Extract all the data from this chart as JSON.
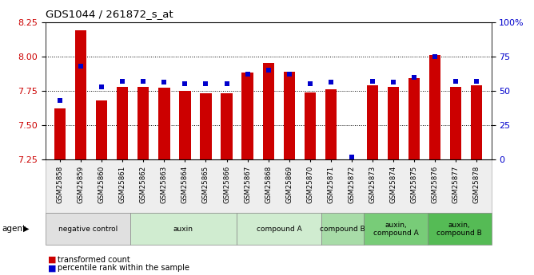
{
  "title": "GDS1044 / 261872_s_at",
  "samples": [
    "GSM25858",
    "GSM25859",
    "GSM25860",
    "GSM25861",
    "GSM25862",
    "GSM25863",
    "GSM25864",
    "GSM25865",
    "GSM25866",
    "GSM25867",
    "GSM25868",
    "GSM25869",
    "GSM25870",
    "GSM25871",
    "GSM25872",
    "GSM25873",
    "GSM25874",
    "GSM25875",
    "GSM25876",
    "GSM25877",
    "GSM25878"
  ],
  "bar_values": [
    7.62,
    8.19,
    7.68,
    7.78,
    7.78,
    7.77,
    7.75,
    7.73,
    7.73,
    7.88,
    7.95,
    7.89,
    7.74,
    7.76,
    7.25,
    7.79,
    7.78,
    7.84,
    8.01,
    7.78,
    7.79
  ],
  "percentile_values": [
    43,
    68,
    53,
    57,
    57,
    56,
    55,
    55,
    55,
    62,
    65,
    62,
    55,
    56,
    2,
    57,
    56,
    60,
    75,
    57,
    57
  ],
  "bar_color": "#cc0000",
  "percentile_color": "#0000cc",
  "ylim_left": [
    7.25,
    8.25
  ],
  "ylim_right": [
    0,
    100
  ],
  "yticks_left": [
    7.25,
    7.5,
    7.75,
    8.0,
    8.25
  ],
  "yticks_right": [
    0,
    25,
    50,
    75,
    100
  ],
  "ytick_labels_right": [
    "0",
    "25",
    "50",
    "75",
    "100%"
  ],
  "grid_values": [
    7.5,
    7.75,
    8.0
  ],
  "agent_groups": [
    {
      "label": "negative control",
      "start": 0,
      "end": 4,
      "color": "#e0e0e0"
    },
    {
      "label": "auxin",
      "start": 4,
      "end": 9,
      "color": "#d0ecd0"
    },
    {
      "label": "compound A",
      "start": 9,
      "end": 13,
      "color": "#d0ecd0"
    },
    {
      "label": "compound B",
      "start": 13,
      "end": 15,
      "color": "#a8dca8"
    },
    {
      "label": "auxin,\ncompound A",
      "start": 15,
      "end": 18,
      "color": "#78cc78"
    },
    {
      "label": "auxin,\ncompound B",
      "start": 18,
      "end": 21,
      "color": "#55bb55"
    }
  ],
  "legend_items": [
    {
      "label": "transformed count",
      "color": "#cc0000"
    },
    {
      "label": "percentile rank within the sample",
      "color": "#0000cc"
    }
  ],
  "bar_width": 0.55
}
